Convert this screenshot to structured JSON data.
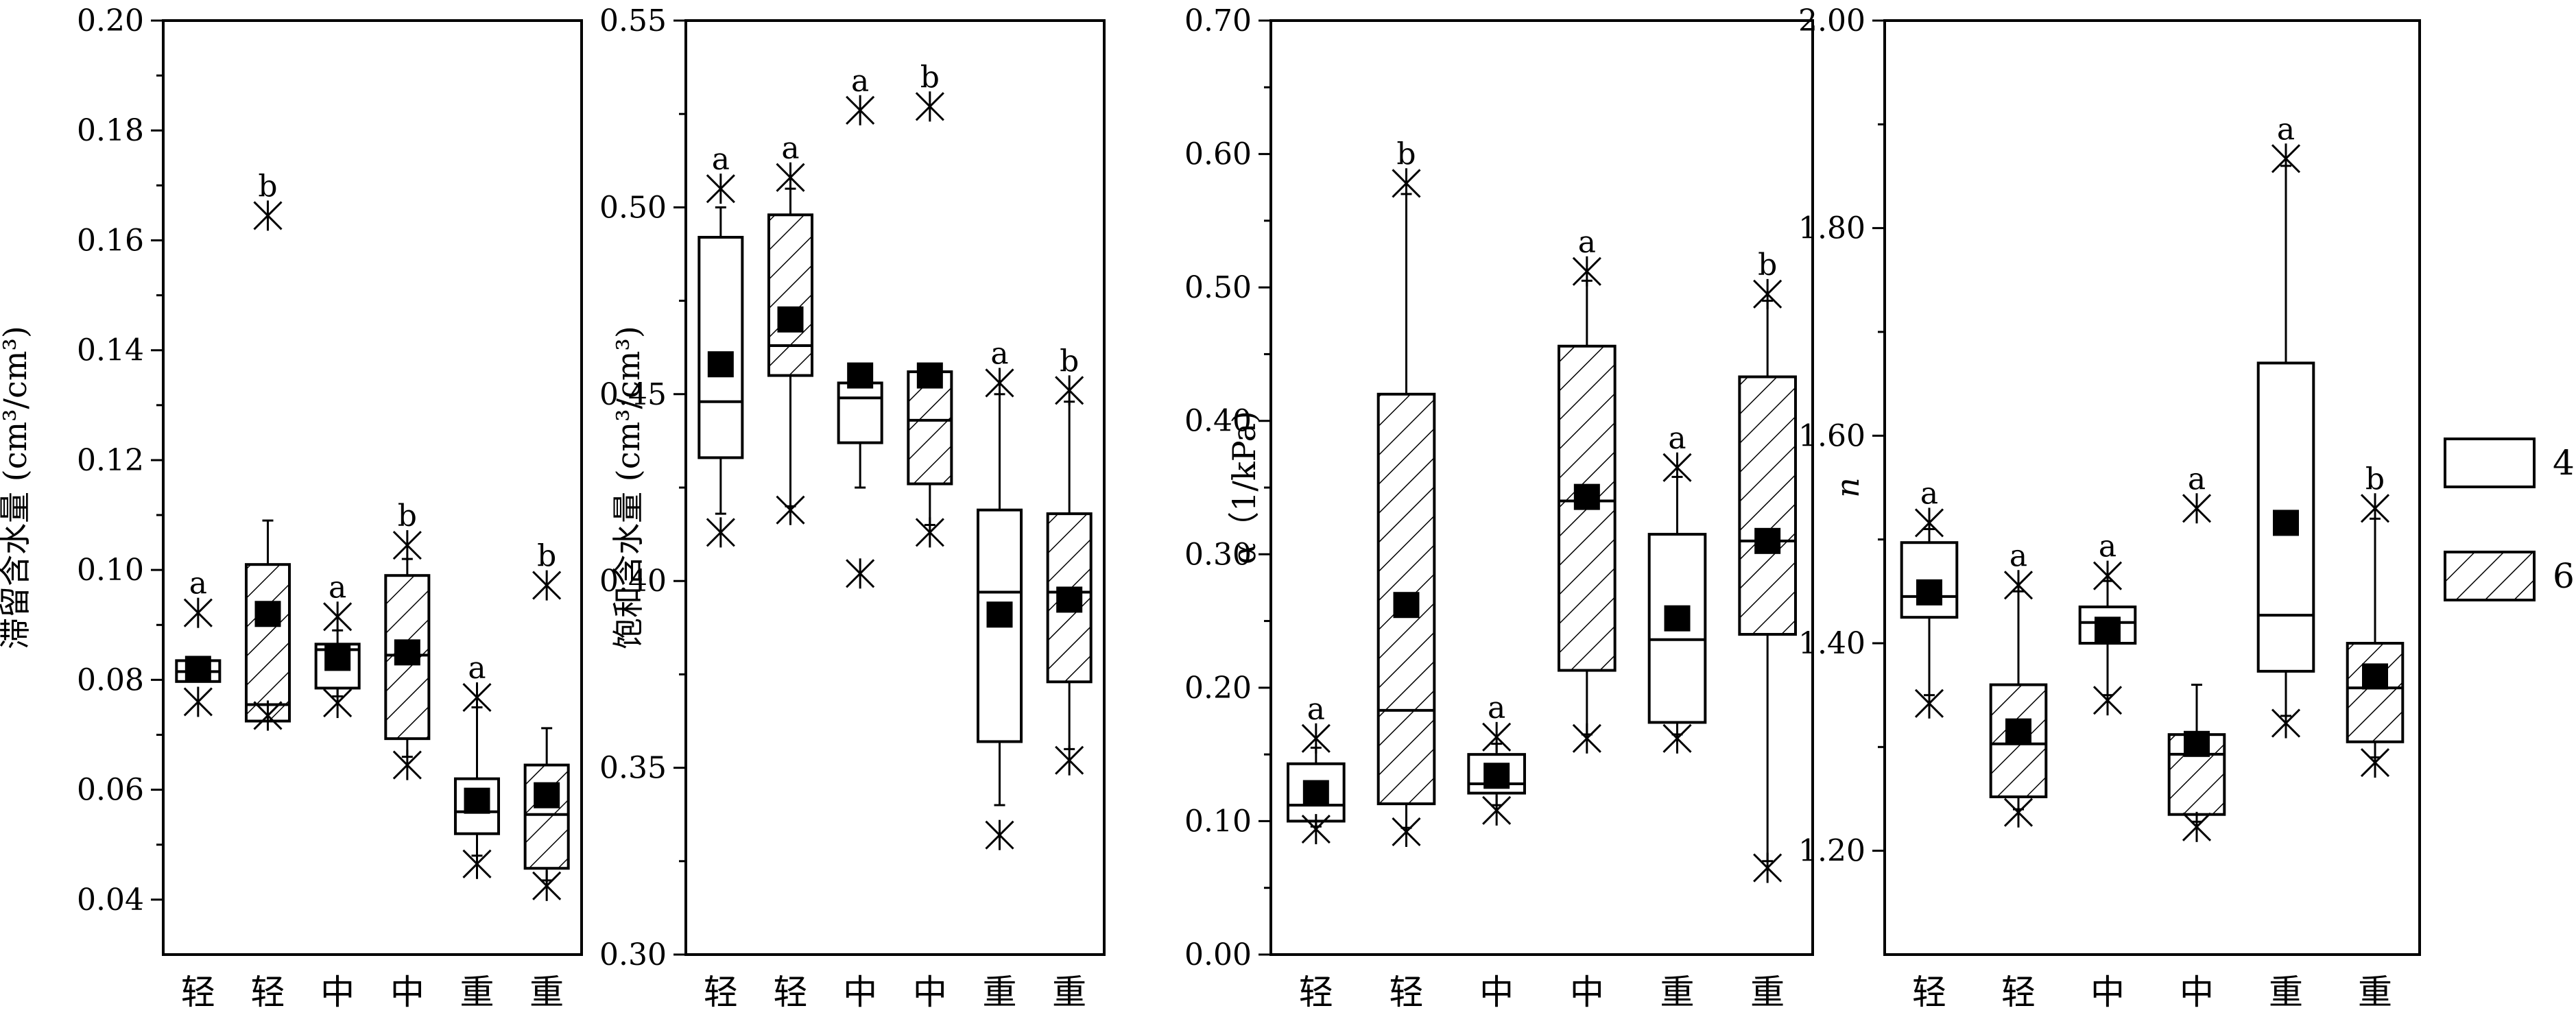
{
  "chart_data": [
    {
      "type": "box",
      "ylabel": "滞留含水量 (cm³/cm³)",
      "ylim": [
        0.03,
        0.2
      ],
      "yticks": [
        "0.04",
        "0.06",
        "0.08",
        "0.10",
        "0.12",
        "0.14",
        "0.16",
        "0.18",
        "0.20"
      ],
      "categories": [
        "轻",
        "轻",
        "中",
        "中",
        "重",
        "重"
      ],
      "boxes": [
        {
          "q1": 0.0797,
          "median": 0.0815,
          "q3": 0.0835,
          "whisker_low": 0.0797,
          "whisker_high": 0.0835,
          "mean": 0.082,
          "min": 0.076,
          "max": 0.0922,
          "letter": "a",
          "series": "4"
        },
        {
          "q1": 0.0725,
          "median": 0.0755,
          "q3": 0.101,
          "whisker_low": 0.0725,
          "whisker_high": 0.109,
          "mean": 0.092,
          "min": 0.0735,
          "max": 0.1645,
          "letter": "b",
          "series": "6"
        },
        {
          "q1": 0.0785,
          "median": 0.0855,
          "q3": 0.0865,
          "whisker_low": 0.077,
          "whisker_high": 0.089,
          "mean": 0.084,
          "min": 0.0758,
          "max": 0.0915,
          "letter": "a",
          "series": "4"
        },
        {
          "q1": 0.0693,
          "median": 0.0845,
          "q3": 0.099,
          "whisker_low": 0.066,
          "whisker_high": 0.102,
          "mean": 0.085,
          "min": 0.0645,
          "max": 0.1045,
          "letter": "b",
          "series": "6"
        },
        {
          "q1": 0.052,
          "median": 0.056,
          "q3": 0.062,
          "whisker_low": 0.048,
          "whisker_high": 0.075,
          "mean": 0.058,
          "min": 0.0465,
          "max": 0.0768,
          "letter": "a",
          "series": "4"
        },
        {
          "q1": 0.0457,
          "median": 0.0555,
          "q3": 0.0645,
          "whisker_low": 0.0435,
          "whisker_high": 0.0712,
          "mean": 0.059,
          "min": 0.0425,
          "max": 0.0972,
          "letter": "b",
          "series": "6"
        }
      ]
    },
    {
      "type": "box",
      "ylabel": "饱和含水量 (cm³/cm³)",
      "ylim": [
        0.3,
        0.55
      ],
      "yticks": [
        "0.30",
        "0.35",
        "0.40",
        "0.45",
        "0.50",
        "0.55"
      ],
      "categories": [
        "轻",
        "轻",
        "中",
        "中",
        "重",
        "重"
      ],
      "boxes": [
        {
          "q1": 0.433,
          "median": 0.448,
          "q3": 0.492,
          "whisker_low": 0.418,
          "whisker_high": 0.5,
          "mean": 0.458,
          "min": 0.413,
          "max": 0.505,
          "letter": "a",
          "series": "4"
        },
        {
          "q1": 0.455,
          "median": 0.463,
          "q3": 0.498,
          "whisker_low": 0.42,
          "whisker_high": 0.505,
          "mean": 0.47,
          "min": 0.419,
          "max": 0.508,
          "letter": "a",
          "series": "6"
        },
        {
          "q1": 0.437,
          "median": 0.449,
          "q3": 0.453,
          "whisker_low": 0.425,
          "whisker_high": 0.455,
          "mean": 0.455,
          "min": 0.402,
          "max": 0.526,
          "letter": "a",
          "series": "4"
        },
        {
          "q1": 0.426,
          "median": 0.443,
          "q3": 0.456,
          "whisker_low": 0.415,
          "whisker_high": 0.456,
          "mean": 0.455,
          "min": 0.413,
          "max": 0.527,
          "letter": "b",
          "series": "6"
        },
        {
          "q1": 0.357,
          "median": 0.397,
          "q3": 0.419,
          "whisker_low": 0.34,
          "whisker_high": 0.45,
          "mean": 0.391,
          "min": 0.332,
          "max": 0.453,
          "letter": "a",
          "series": "4"
        },
        {
          "q1": 0.373,
          "median": 0.397,
          "q3": 0.418,
          "whisker_low": 0.355,
          "whisker_high": 0.448,
          "mean": 0.395,
          "min": 0.352,
          "max": 0.451,
          "letter": "b",
          "series": "6"
        }
      ]
    },
    {
      "type": "box",
      "ylabel": "α（1/kPa)",
      "ylim": [
        0.0,
        0.7
      ],
      "yticks": [
        "0.00",
        "0.10",
        "0.20",
        "0.30",
        "0.40",
        "0.50",
        "0.60",
        "0.70"
      ],
      "categories": [
        "轻",
        "轻",
        "中",
        "中",
        "重",
        "重"
      ],
      "boxes": [
        {
          "q1": 0.1,
          "median": 0.112,
          "q3": 0.143,
          "whisker_low": 0.096,
          "whisker_high": 0.155,
          "mean": 0.121,
          "min": 0.094,
          "max": 0.162,
          "letter": "a",
          "series": "4"
        },
        {
          "q1": 0.113,
          "median": 0.183,
          "q3": 0.42,
          "whisker_low": 0.095,
          "whisker_high": 0.57,
          "mean": 0.262,
          "min": 0.092,
          "max": 0.578,
          "letter": "b",
          "series": "6"
        },
        {
          "q1": 0.121,
          "median": 0.128,
          "q3": 0.15,
          "whisker_low": 0.112,
          "whisker_high": 0.158,
          "mean": 0.134,
          "min": 0.108,
          "max": 0.163,
          "letter": "a",
          "series": "4"
        },
        {
          "q1": 0.213,
          "median": 0.34,
          "q3": 0.456,
          "whisker_low": 0.165,
          "whisker_high": 0.505,
          "mean": 0.343,
          "min": 0.162,
          "max": 0.512,
          "letter": "a",
          "series": "6"
        },
        {
          "q1": 0.174,
          "median": 0.236,
          "q3": 0.315,
          "whisker_low": 0.165,
          "whisker_high": 0.358,
          "mean": 0.252,
          "min": 0.162,
          "max": 0.365,
          "letter": "a",
          "series": "4"
        },
        {
          "q1": 0.24,
          "median": 0.31,
          "q3": 0.433,
          "whisker_low": 0.07,
          "whisker_high": 0.49,
          "mean": 0.31,
          "min": 0.065,
          "max": 0.495,
          "letter": "b",
          "series": "6"
        }
      ]
    },
    {
      "type": "box",
      "ylabel": "n",
      "ylim": [
        1.1,
        2.0
      ],
      "yticks": [
        "1.20",
        "1.40",
        "1.60",
        "1.80",
        "2.00"
      ],
      "categories": [
        "轻",
        "轻",
        "中",
        "中",
        "重",
        "重"
      ],
      "boxes": [
        {
          "q1": 1.425,
          "median": 1.445,
          "q3": 1.497,
          "whisker_low": 1.35,
          "whisker_high": 1.51,
          "mean": 1.449,
          "min": 1.342,
          "max": 1.516,
          "letter": "a",
          "series": "4"
        },
        {
          "q1": 1.252,
          "median": 1.303,
          "q3": 1.36,
          "whisker_low": 1.24,
          "whisker_high": 1.45,
          "mean": 1.315,
          "min": 1.237,
          "max": 1.456,
          "letter": "a",
          "series": "6"
        },
        {
          "q1": 1.4,
          "median": 1.42,
          "q3": 1.435,
          "whisker_low": 1.35,
          "whisker_high": 1.46,
          "mean": 1.413,
          "min": 1.345,
          "max": 1.465,
          "letter": "a",
          "series": "4"
        },
        {
          "q1": 1.235,
          "median": 1.293,
          "q3": 1.312,
          "whisker_low": 1.228,
          "whisker_high": 1.36,
          "mean": 1.303,
          "min": 1.223,
          "max": 1.53,
          "letter": "a",
          "series": "6"
        },
        {
          "q1": 1.373,
          "median": 1.427,
          "q3": 1.67,
          "whisker_low": 1.33,
          "whisker_high": 1.86,
          "mean": 1.516,
          "min": 1.323,
          "max": 1.867,
          "letter": "a",
          "series": "4"
        },
        {
          "q1": 1.305,
          "median": 1.357,
          "q3": 1.4,
          "whisker_low": 1.29,
          "whisker_high": 1.52,
          "mean": 1.368,
          "min": 1.285,
          "max": 1.53,
          "letter": "b",
          "series": "6"
        }
      ]
    }
  ],
  "legend": {
    "position": "right",
    "entries": [
      {
        "label": "4",
        "pattern": "plain"
      },
      {
        "label": "6",
        "pattern": "hatched"
      }
    ]
  }
}
